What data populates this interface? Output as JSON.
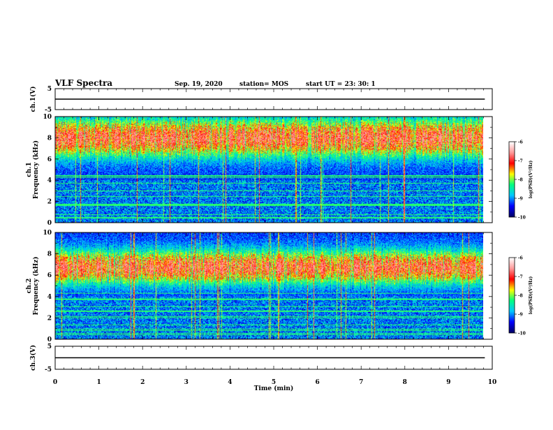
{
  "header": {
    "title": "VLF Spectra",
    "date": "Sep. 19, 2020",
    "station": "station= MOS",
    "start": "start  UT =   23: 30: 1"
  },
  "colors": {
    "colormap": [
      "#000066",
      "#0000ff",
      "#00c8ff",
      "#00ff80",
      "#ffff00",
      "#ff0000",
      "#ff9999",
      "#ffffff"
    ],
    "trace": "#000000"
  },
  "chart_data": [
    {
      "type": "line",
      "panel": "ch1-voltage",
      "ylabel": "ch.1(V)",
      "ylim": [
        -5,
        5
      ],
      "yticks": [
        "5",
        "-5"
      ],
      "xlim": [
        0,
        10
      ],
      "series": [
        {
          "x": [
            0,
            9.83
          ],
          "y": [
            0,
            0
          ]
        }
      ]
    },
    {
      "type": "heatmap",
      "panel": "ch1-spectrogram",
      "ylabel": "ch.1\nFrequency (kHz)",
      "ylim": [
        0,
        10
      ],
      "yticks": [
        "0",
        "2",
        "4",
        "6",
        "8",
        "10"
      ],
      "xlim": [
        0,
        10
      ],
      "data_end_min": 9.83,
      "emission_band_khz": [
        6,
        10
      ],
      "colorbar": {
        "label": "log(PSD)(V²/Hz)",
        "range": [
          -10,
          -6
        ],
        "ticks": [
          "-6",
          "-7",
          "-8",
          "-9",
          "-10"
        ]
      }
    },
    {
      "type": "heatmap",
      "panel": "ch2-spectrogram",
      "ylabel": "ch.2\nFrequency (kHz)",
      "ylim": [
        0,
        10
      ],
      "yticks": [
        "0",
        "2",
        "4",
        "6",
        "8",
        "10"
      ],
      "xlim": [
        0,
        10
      ],
      "data_end_min": 9.83,
      "emission_band_khz": [
        5,
        8.5
      ],
      "colorbar": {
        "label": "log(PSD)(V²/Hz)",
        "range": [
          -10,
          -6
        ],
        "ticks": [
          "-6",
          "-7",
          "-8",
          "-9",
          "-10"
        ]
      }
    },
    {
      "type": "line",
      "panel": "ch3-voltage",
      "ylabel": "ch.3(V)",
      "ylim": [
        -5,
        5
      ],
      "yticks": [
        "5",
        "-5"
      ],
      "xlim": [
        0,
        10
      ],
      "xlabel": "Time (min)",
      "xticks": [
        "0",
        "1",
        "2",
        "3",
        "4",
        "5",
        "6",
        "7",
        "8",
        "9",
        "10"
      ],
      "series": [
        {
          "x": [
            0,
            9.83
          ],
          "y": [
            0,
            0
          ]
        }
      ]
    }
  ]
}
